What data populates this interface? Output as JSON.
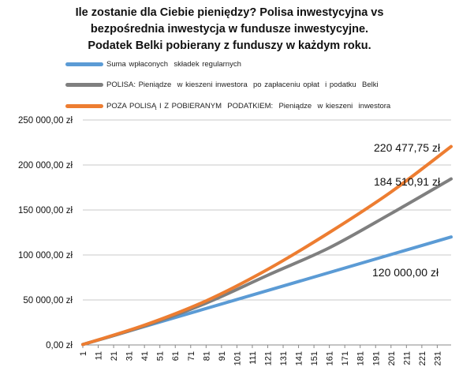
{
  "chart_data": {
    "type": "line",
    "title_lines": [
      "Ile zostanie dla Ciebie pieniędzy? Polisa inwestycyjna vs",
      "bezpośrednia inwestycja w fundusze inwestycyjne.",
      "Podatek Belki pobierany z funduszy w każdym roku."
    ],
    "ylim": [
      0,
      250000
    ],
    "y_ticks": [
      "0,00 zł",
      "50 000,00 zł",
      "100 000,00 zł",
      "150 000,00 zł",
      "200 000,00 zł",
      "250 000,00 zł"
    ],
    "y_tick_values": [
      0,
      50000,
      100000,
      150000,
      200000,
      250000
    ],
    "x_ticks": [
      "1",
      "11",
      "21",
      "31",
      "41",
      "51",
      "61",
      "71",
      "81",
      "91",
      "101",
      "111",
      "121",
      "131",
      "141",
      "151",
      "161",
      "171",
      "181",
      "191",
      "201",
      "211",
      "221",
      "231"
    ],
    "x_range": [
      1,
      240
    ],
    "grid": "horizontal",
    "legend_position": "top",
    "series": [
      {
        "name": "Suma wpłaconych  składek regularnych",
        "color": "#5b9bd5",
        "x": [
          1,
          240
        ],
        "values": [
          500,
          120000
        ],
        "end_label": "120 000,00 zł"
      },
      {
        "name": "POLISA: Pieniądze  w kieszeni inwestora  po zapłaceniu opłat  i podatku  Belki",
        "color": "#7f7f7f",
        "x": [
          1,
          41,
          81,
          121,
          161,
          201,
          240
        ],
        "values": [
          500,
          21000,
          46500,
          77500,
          108000,
          146000,
          184510.91
        ],
        "end_label": "184 510,91 zł"
      },
      {
        "name": "POZA POLISĄ I Z POBIERANYM  PODATKIEM:  Pieniądze  w kieszeni  inwestora",
        "color": "#ed7d31",
        "x": [
          1,
          41,
          81,
          121,
          161,
          201,
          240
        ],
        "values": [
          500,
          22000,
          49000,
          84000,
          125000,
          170000,
          220477.75
        ],
        "end_label": "220 477,75 zł"
      }
    ]
  }
}
